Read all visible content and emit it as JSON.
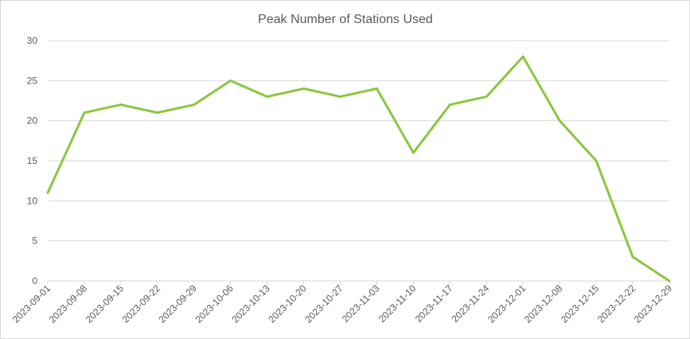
{
  "chart_data": {
    "type": "line",
    "title": "Peak Number of Stations Used",
    "xlabel": "",
    "ylabel": "",
    "ylim": [
      0,
      30
    ],
    "yticks": [
      0,
      5,
      10,
      15,
      20,
      25,
      30
    ],
    "grid": true,
    "legend": "none",
    "categories": [
      "2023-09-01",
      "2023-09-08",
      "2023-09-15",
      "2023-09-22",
      "2023-09-29",
      "2023-10-06",
      "2023-10-13",
      "2023-10-20",
      "2023-10-27",
      "2023-11-03",
      "2023-11-10",
      "2023-11-17",
      "2023-11-24",
      "2023-12-01",
      "2023-12-08",
      "2023-12-15",
      "2023-12-22",
      "2023-12-29"
    ],
    "series": [
      {
        "color": "#8cc63f",
        "values": [
          11,
          21,
          22,
          21,
          22,
          25,
          23,
          24,
          23,
          24,
          16,
          22,
          23,
          28,
          20,
          15,
          3,
          0
        ]
      }
    ]
  }
}
